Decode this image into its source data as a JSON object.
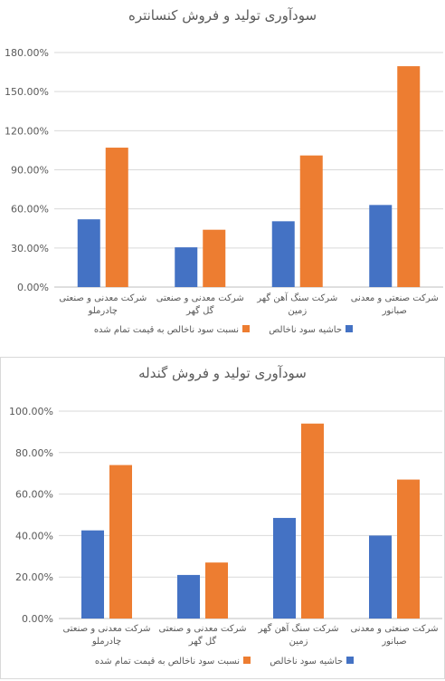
{
  "chart_data": [
    {
      "type": "bar",
      "title": "سودآوری تولید و فروش کنسانتره",
      "categories": [
        [
          "شرکت معدنی و صنعتی",
          "چادرملو"
        ],
        [
          "شرکت معدنی و صنعتی",
          "گل گهر"
        ],
        [
          "شرکت سنگ آهن گهر",
          "زمین"
        ],
        [
          "شرکت صنعتی و معدنی",
          "صبانور"
        ]
      ],
      "series": [
        {
          "name": "حاشیه سود ناخالص",
          "color": "#4472C4",
          "values": [
            52,
            30.5,
            50.5,
            63
          ]
        },
        {
          "name": "نسبت سود ناخالص به قیمت تمام شده",
          "color": "#ED7D31",
          "values": [
            107,
            44,
            101,
            169.5
          ]
        }
      ],
      "ylim": [
        0,
        180
      ],
      "yticks": [
        "0.00%",
        "30.00%",
        "60.00%",
        "90.00%",
        "120.00%",
        "150.00%",
        "180.00%"
      ],
      "grid": true,
      "legend": "bottom"
    },
    {
      "type": "bar",
      "title": "سودآوری تولید و فروش گندله",
      "categories": [
        [
          "شرکت معدنی و صنعتی",
          "چادرملو"
        ],
        [
          "شرکت معدنی و صنعتی",
          "گل گهر"
        ],
        [
          "شرکت سنگ آهن گهر",
          "زمین"
        ],
        [
          "شرکت صنعتی و معدنی",
          "صبانور"
        ]
      ],
      "series": [
        {
          "name": "حاشیه سود ناخالص",
          "color": "#4472C4",
          "values": [
            42.5,
            21,
            48.5,
            40
          ]
        },
        {
          "name": "نسبت سود ناخالص به قیمت تمام شده",
          "color": "#ED7D31",
          "values": [
            74,
            27,
            94,
            67
          ]
        }
      ],
      "ylim": [
        0,
        100
      ],
      "yticks": [
        "0.00%",
        "20.00%",
        "40.00%",
        "60.00%",
        "80.00%",
        "100.00%"
      ],
      "grid": true,
      "legend": "bottom"
    }
  ]
}
